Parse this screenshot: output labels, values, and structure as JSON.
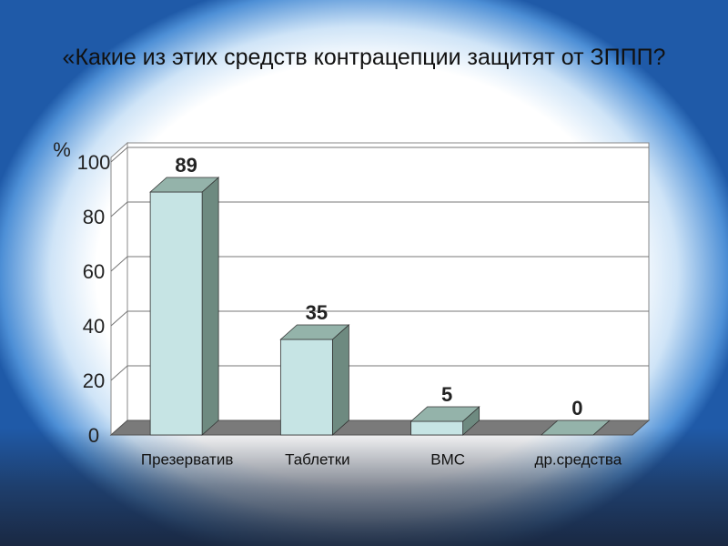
{
  "chart_data": {
    "type": "bar3d",
    "title": "«Какие из этих средств контрацепции защитят от ЗППП?",
    "y_label": "%",
    "categories": [
      "Презерватив",
      "Таблетки",
      "ВМС",
      "др.средства"
    ],
    "values": [
      89,
      35,
      5,
      0
    ],
    "color": "#c6e4e4",
    "ylim": [
      0,
      100
    ],
    "yticks": [
      0,
      20,
      40,
      60,
      80,
      100
    ],
    "grid": true
  }
}
